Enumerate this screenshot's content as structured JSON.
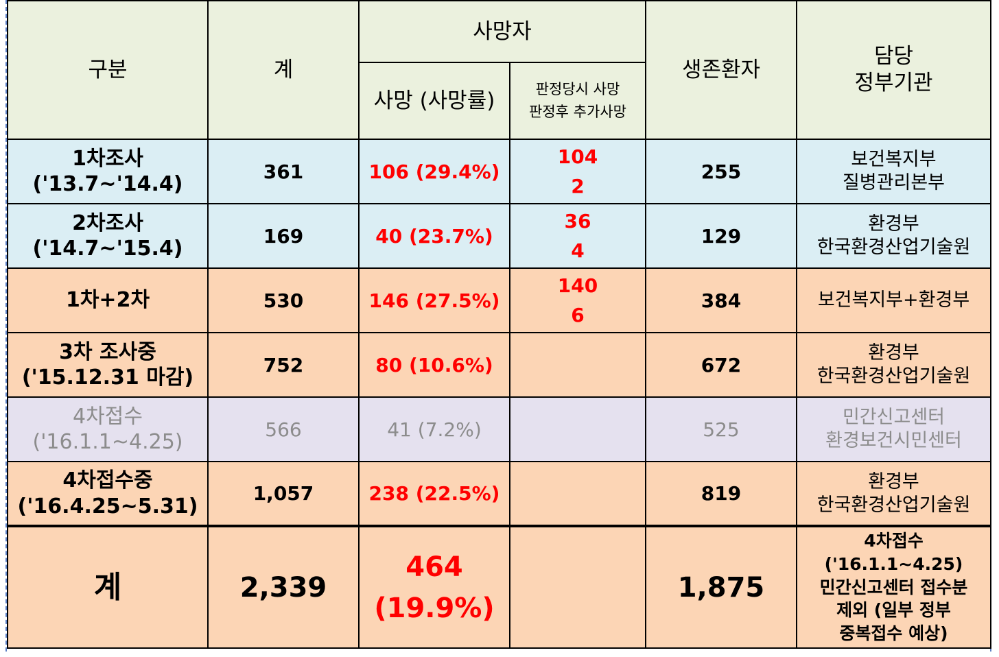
{
  "header": {
    "category": "구분",
    "total": "계",
    "deaths": "사망자",
    "death_rate": "사망 (사망률)",
    "death_sub_line1": "판정당시 사망",
    "death_sub_line2": "판정후 추가사망",
    "survivors": "생존환자",
    "agency_line1": "담당",
    "agency_line2": "정부기관"
  },
  "rows": [
    {
      "label_line1": "1차조사",
      "label_line2": "('13.7~'14.4)",
      "total": "361",
      "deaths": "106 (29.4%)",
      "at_judgment": "104",
      "after_judgment": "2",
      "survivors": "255",
      "agency_line1": "보건복지부",
      "agency_line2": "질병관리본부",
      "style": "blue"
    },
    {
      "label_line1": "2차조사",
      "label_line2": "('14.7~'15.4)",
      "total": "169",
      "deaths": "40 (23.7%)",
      "at_judgment": "36",
      "after_judgment": "4",
      "survivors": "129",
      "agency_line1": "환경부",
      "agency_line2": "한국환경산업기술원",
      "style": "blue"
    },
    {
      "label_line1": "1차+2차",
      "label_line2": "",
      "total": "530",
      "deaths": "146 (27.5%)",
      "at_judgment": "140",
      "after_judgment": "6",
      "survivors": "384",
      "agency_line1": "보건복지부+환경부",
      "agency_line2": "",
      "style": "orange"
    },
    {
      "label_line1": "3차 조사중",
      "label_line2": "('15.12.31 마감)",
      "total": "752",
      "deaths": "80 (10.6%)",
      "at_judgment": "",
      "after_judgment": "",
      "survivors": "672",
      "agency_line1": "환경부",
      "agency_line2": "한국환경산업기술원",
      "style": "orange"
    },
    {
      "label_line1": "4차접수",
      "label_line2": "('16.1.1~4.25)",
      "total": "566",
      "deaths": "41 (7.2%)",
      "at_judgment": "",
      "after_judgment": "",
      "survivors": "525",
      "agency_line1": "민간신고센터",
      "agency_line2": "환경보건시민센터",
      "style": "purple"
    },
    {
      "label_line1": "4차접수중",
      "label_line2": "('16.4.25~5.31)",
      "total": "1,057",
      "deaths": "238 (22.5%)",
      "at_judgment": "",
      "after_judgment": "",
      "survivors": "819",
      "agency_line1": "환경부",
      "agency_line2": "한국환경산업기술원",
      "style": "orange"
    }
  ],
  "total_row": {
    "label": "계",
    "total": "2,339",
    "deaths_line1": "464",
    "deaths_line2": "(19.9%)",
    "survivors": "1,875",
    "note_line1": "4차접수('16.1.1~4.25)",
    "note_line2": "민간신고센터 접수분",
    "note_line3": "제외 (일부 정부",
    "note_line4": "중복접수 예상)"
  }
}
